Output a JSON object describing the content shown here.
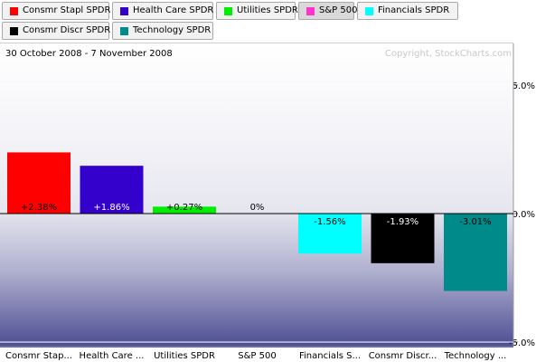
{
  "tabs": [
    {
      "label": "Consmr Stapl SPDR",
      "color": "#ff0000",
      "selected": false
    },
    {
      "label": "Health Care SPDR",
      "color": "#3300cc",
      "selected": false
    },
    {
      "label": "Utilities SPDR",
      "color": "#00ee00",
      "selected": false
    },
    {
      "label": "S&P 500",
      "color": "#ff33cc",
      "selected": true
    },
    {
      "label": "Financials SPDR",
      "color": "#00ffff",
      "selected": false
    },
    {
      "label": "Consmr Discr SPDR",
      "color": "#000000",
      "selected": false
    },
    {
      "label": "Technology SPDR",
      "color": "#008b8b",
      "selected": false
    }
  ],
  "chart_data": {
    "type": "bar",
    "title": "30 October 2008 - 7 November 2008",
    "source_note": "Copyright, StockCharts.com",
    "categories": [
      "Consmr Stap...",
      "Health Care ...",
      "Utilities SPDR",
      "S&P 500",
      "Financials S...",
      "Consmr Discr...",
      "Technology ..."
    ],
    "values": [
      2.38,
      1.86,
      0.27,
      0,
      -1.56,
      -1.93,
      -3.01
    ],
    "value_labels": [
      "+2.38%",
      "+1.86%",
      "+0.27%",
      "0%",
      "-1.56%",
      "-1.93%",
      "-3.01%"
    ],
    "colors": [
      "#ff0000",
      "#3300cc",
      "#00ee00",
      "#ff33cc",
      "#00ffff",
      "#000000",
      "#008b8b"
    ],
    "y_ticks": [
      5,
      0,
      -5
    ],
    "y_tick_labels": [
      "5.0%",
      "0.0%",
      "-5.0%"
    ],
    "ylim": [
      -5,
      5
    ],
    "grid": true,
    "legend": "top"
  }
}
